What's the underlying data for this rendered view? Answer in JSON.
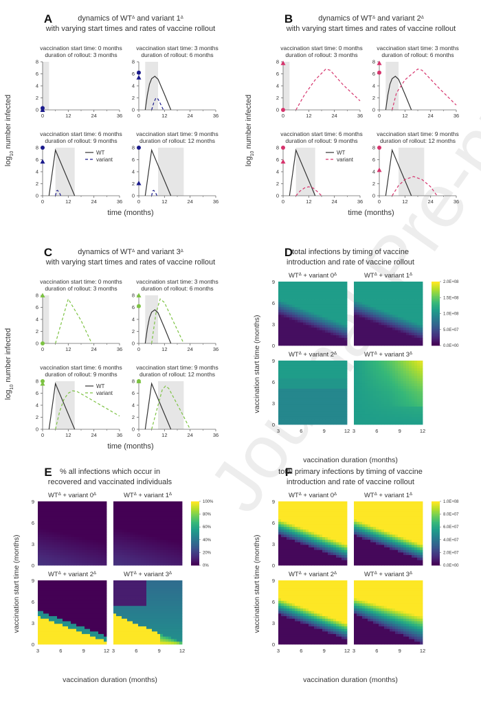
{
  "watermark": "Journal Pre-proof",
  "chart_data": [
    {
      "panel": "A",
      "type": "line",
      "title": [
        "dynamics of WTΔ and variant 1Δ",
        "with varying start times and rates of vaccine rollout"
      ],
      "xlabel": "time (months)",
      "ylabel": "log10 number infected",
      "xlim": [
        0,
        36
      ],
      "ylim": [
        0,
        8
      ],
      "xticks": [
        0,
        12,
        24,
        36
      ],
      "yticks": [
        0,
        2,
        4,
        6,
        8
      ],
      "color": "#1a1a8c",
      "legend": {
        "entries": [
          "WT",
          "variant"
        ],
        "placement": "subplot-3 top-right"
      },
      "subplots": [
        {
          "subtitle": [
            "vaccination start time: 0 months",
            "duration of rollout: 3 months"
          ],
          "vacc_start": 0,
          "vacc_end": 3,
          "wt": [],
          "variant": [],
          "marker_circle": 0.3,
          "marker_triangle": 0
        },
        {
          "subtitle": [
            "vaccination start time: 3 months",
            "duration of rollout: 6 months"
          ],
          "vacc_start": 3,
          "vacc_end": 9,
          "wt": [
            [
              3,
              0
            ],
            [
              4,
              2.5
            ],
            [
              5,
              4.3
            ],
            [
              6,
              5.2
            ],
            [
              7.5,
              5.6
            ],
            [
              9,
              5.1
            ],
            [
              12,
              2.6
            ],
            [
              15,
              0
            ]
          ],
          "variant": [
            [
              6,
              0
            ],
            [
              7,
              1.2
            ],
            [
              8,
              2
            ],
            [
              9,
              1.8
            ],
            [
              10,
              1.1
            ],
            [
              11.5,
              0
            ]
          ],
          "marker_circle": 6.2,
          "marker_triangle": 5.4
        },
        {
          "subtitle": [
            "vaccination start time: 6 months",
            "duration of rollout: 9 months"
          ],
          "vacc_start": 6,
          "vacc_end": 15,
          "wt": [
            [
              3,
              0
            ],
            [
              6,
              7.6
            ],
            [
              15,
              0
            ]
          ],
          "variant": [
            [
              6,
              0
            ],
            [
              6.5,
              0.8
            ],
            [
              7,
              0.9
            ],
            [
              8,
              0.4
            ],
            [
              8.5,
              0
            ]
          ],
          "marker_circle": 8,
          "marker_triangle": 5.7
        },
        {
          "subtitle": [
            "vaccination start time: 9 months",
            "duration of rollout: 12 months"
          ],
          "vacc_start": 9,
          "vacc_end": 21,
          "wt": [
            [
              3,
              0
            ],
            [
              6,
              7.6
            ],
            [
              15,
              0
            ]
          ],
          "variant": [
            [
              6,
              0
            ],
            [
              6.5,
              0.8
            ],
            [
              7,
              0.9
            ],
            [
              8,
              0.4
            ],
            [
              8.5,
              0
            ]
          ],
          "marker_circle": 8,
          "marker_triangle": 2.1
        }
      ]
    },
    {
      "panel": "B",
      "type": "line",
      "title": [
        "dynamics of WTΔ and variant 2Δ",
        "with varying start times and rates of vaccine rollout"
      ],
      "xlabel": "time (months)",
      "ylabel": "log10 number infected",
      "xlim": [
        0,
        36
      ],
      "ylim": [
        0,
        8
      ],
      "xticks": [
        0,
        12,
        24,
        36
      ],
      "yticks": [
        0,
        2,
        4,
        6,
        8
      ],
      "color": "#d6336c",
      "legend": {
        "entries": [
          "WT",
          "variant"
        ],
        "placement": "subplot-3 top-right"
      },
      "subplots": [
        {
          "subtitle": [
            "vaccination start time: 0 months",
            "duration of rollout: 3 months"
          ],
          "vacc_start": 0,
          "vacc_end": 3,
          "wt": [],
          "variant": [
            [
              6,
              0
            ],
            [
              10,
              2.5
            ],
            [
              15,
              5
            ],
            [
              20,
              6.8
            ],
            [
              22,
              6.6
            ],
            [
              28,
              4.2
            ],
            [
              36,
              1.5
            ]
          ],
          "marker_circle": 0,
          "marker_triangle": 7.8
        },
        {
          "subtitle": [
            "vaccination start time: 3 months",
            "duration of rollout: 6 months"
          ],
          "vacc_start": 3,
          "vacc_end": 9,
          "wt": [
            [
              3,
              0
            ],
            [
              4,
              2.5
            ],
            [
              5,
              4.3
            ],
            [
              6,
              5.2
            ],
            [
              7.5,
              5.6
            ],
            [
              9,
              5.1
            ],
            [
              12,
              2.6
            ],
            [
              15,
              0
            ]
          ],
          "variant": [
            [
              6,
              0
            ],
            [
              8,
              2.8
            ],
            [
              12,
              5
            ],
            [
              18,
              6.8
            ],
            [
              20,
              6.6
            ],
            [
              28,
              3.6
            ],
            [
              36,
              0.8
            ]
          ],
          "marker_circle": 6.2,
          "marker_triangle": 7.8
        },
        {
          "subtitle": [
            "vaccination start time: 6 months",
            "duration of rollout: 9 months"
          ],
          "vacc_start": 6,
          "vacc_end": 15,
          "wt": [
            [
              3,
              0
            ],
            [
              6,
              7.6
            ],
            [
              15,
              0
            ]
          ],
          "variant": [
            [
              6,
              0
            ],
            [
              8,
              0.8
            ],
            [
              10,
              1.3
            ],
            [
              12,
              1.5
            ],
            [
              14,
              1.3
            ],
            [
              16,
              0.7
            ],
            [
              18,
              0
            ]
          ],
          "marker_circle": 8,
          "marker_triangle": 5.7
        },
        {
          "subtitle": [
            "vaccination start time: 9 months",
            "duration of rollout: 12 months"
          ],
          "vacc_start": 9,
          "vacc_end": 21,
          "wt": [
            [
              3,
              0
            ],
            [
              6,
              7.6
            ],
            [
              15,
              0
            ]
          ],
          "variant": [
            [
              6,
              0
            ],
            [
              9,
              1.7
            ],
            [
              12,
              2.7
            ],
            [
              16,
              3.2
            ],
            [
              20,
              2.7
            ],
            [
              24,
              1.5
            ],
            [
              27,
              0
            ]
          ],
          "marker_circle": 8,
          "marker_triangle": 4.3
        }
      ]
    },
    {
      "panel": "C",
      "type": "line",
      "title": [
        "dynamics of WTΔ and variant 3Δ",
        "with varying start times and rates of vaccine rollout"
      ],
      "xlabel": "time (months)",
      "ylabel": "log10 number infected",
      "xlim": [
        0,
        36
      ],
      "ylim": [
        0,
        8
      ],
      "xticks": [
        0,
        12,
        24,
        36
      ],
      "yticks": [
        0,
        2,
        4,
        6,
        8
      ],
      "color": "#7cc242",
      "legend": {
        "entries": [
          "WT",
          "variant"
        ],
        "placement": "subplot-3 top-right"
      },
      "subplots": [
        {
          "subtitle": [
            "vaccination start time: 0 months",
            "duration of rollout: 3 months"
          ],
          "vacc_start": 0,
          "vacc_end": 3,
          "wt": [],
          "variant": [
            [
              6,
              0
            ],
            [
              12,
              7.4
            ],
            [
              18,
              3.8
            ],
            [
              23,
              0
            ]
          ],
          "marker_circle": 0,
          "marker_triangle": 8
        },
        {
          "subtitle": [
            "vaccination start time: 3 months",
            "duration of rollout: 6 months"
          ],
          "vacc_start": 3,
          "vacc_end": 9,
          "wt": [
            [
              3,
              0
            ],
            [
              4,
              2.5
            ],
            [
              5,
              4.3
            ],
            [
              6,
              5.2
            ],
            [
              7.5,
              5.6
            ],
            [
              9,
              5.1
            ],
            [
              12,
              2.6
            ],
            [
              15,
              0
            ]
          ],
          "variant": [
            [
              6,
              0
            ],
            [
              8,
              5
            ],
            [
              10,
              7.4
            ],
            [
              12,
              6.8
            ],
            [
              21,
              0
            ]
          ],
          "marker_circle": 6.2,
          "marker_triangle": 8
        },
        {
          "subtitle": [
            "vaccination start time: 6 months",
            "duration of rollout: 9 months"
          ],
          "vacc_start": 6,
          "vacc_end": 15,
          "wt": [
            [
              3,
              0
            ],
            [
              6,
              7.6
            ],
            [
              15,
              0
            ]
          ],
          "variant": [
            [
              6,
              0
            ],
            [
              8,
              3
            ],
            [
              10,
              5
            ],
            [
              12,
              6
            ],
            [
              14,
              6.4
            ],
            [
              16,
              6.3
            ],
            [
              20,
              5.5
            ],
            [
              36,
              2.2
            ]
          ],
          "marker_circle": 8,
          "marker_triangle": 7.6
        },
        {
          "subtitle": [
            "vaccination start time: 9 months",
            "duration of rollout: 12 months"
          ],
          "vacc_start": 9,
          "vacc_end": 21,
          "wt": [
            [
              3,
              0
            ],
            [
              6,
              7.6
            ],
            [
              15,
              0
            ]
          ],
          "variant": [
            [
              6,
              0
            ],
            [
              9,
              4
            ],
            [
              11,
              6.6
            ],
            [
              12.5,
              7.2
            ],
            [
              14,
              6.8
            ],
            [
              20,
              2.8
            ],
            [
              24,
              0
            ]
          ],
          "marker_circle": 8,
          "marker_triangle": 8
        }
      ]
    },
    {
      "panel": "D",
      "type": "heatmap",
      "title": [
        "total infections by timing of vaccine",
        "introduction and rate of vaccine rollout"
      ],
      "xlabel": "vaccination duration (months)",
      "ylabel": "vaccination start time (months)",
      "xlim": [
        3,
        12
      ],
      "ylim": [
        0,
        9
      ],
      "xticks": [
        3,
        6,
        9,
        12
      ],
      "yticks": [
        0,
        3,
        6,
        9
      ],
      "colorbar": {
        "min": 0,
        "max": 200000000,
        "ticks": [
          "0.0E+00",
          "5.0E+07",
          "1.0E+08",
          "1.5E+08",
          "2.0E+08"
        ],
        "colormap": "viridis"
      },
      "subplots": [
        {
          "subtitle": "WTΔ + variant 0Δ",
          "pattern": "ramp",
          "low": 0.0,
          "high": 0.55
        },
        {
          "subtitle": "WTΔ + variant 1Δ",
          "pattern": "ramp",
          "low": 0.0,
          "high": 0.55
        },
        {
          "subtitle": "WTΔ + variant 2Δ",
          "pattern": "flat",
          "low": 0.42,
          "high": 0.55
        },
        {
          "subtitle": "WTΔ + variant 3Δ",
          "pattern": "v3d",
          "low": 0.5,
          "high": 1.0
        }
      ]
    },
    {
      "panel": "E",
      "type": "heatmap",
      "title": [
        "% all infections which occur in",
        "recovered and vaccinated individuals"
      ],
      "xlabel": "vaccination duration (months)",
      "ylabel": "vaccination start time (months)",
      "xlim": [
        3,
        12
      ],
      "ylim": [
        0,
        9
      ],
      "xticks": [
        3,
        6,
        9,
        12
      ],
      "yticks": [
        0,
        3,
        6,
        9
      ],
      "colorbar": {
        "min": 0,
        "max": 100,
        "ticks": [
          "0%",
          "20%",
          "40%",
          "60%",
          "80%",
          "100%"
        ],
        "colormap": "viridis"
      },
      "subplots": [
        {
          "subtitle": "WTΔ + variant 0Δ",
          "pattern": "e01",
          "low": 0.0,
          "high": 0.15
        },
        {
          "subtitle": "WTΔ + variant 1Δ",
          "pattern": "e01",
          "low": 0.0,
          "high": 0.15
        },
        {
          "subtitle": "WTΔ + variant 2Δ",
          "pattern": "e2",
          "low": 0.0,
          "high": 1.0
        },
        {
          "subtitle": "WTΔ + variant 3Δ",
          "pattern": "e3",
          "low": 0.05,
          "high": 1.0
        }
      ]
    },
    {
      "panel": "F",
      "type": "heatmap",
      "title": [
        "total primary infections by timing of vaccine",
        "introduction and rate of vaccine rollout"
      ],
      "xlabel": "vaccination duration (months)",
      "ylabel": "vaccination start time (months)",
      "xlim": [
        3,
        12
      ],
      "ylim": [
        0,
        9
      ],
      "xticks": [
        3,
        6,
        9,
        12
      ],
      "yticks": [
        0,
        3,
        6,
        9
      ],
      "colorbar": {
        "min": 0,
        "max": 100000000,
        "ticks": [
          "0.0E+00",
          "2.0E+07",
          "4.0E+07",
          "6.0E+07",
          "8.0E+07",
          "1.0E+08"
        ],
        "colormap": "viridis"
      },
      "subplots": [
        {
          "subtitle": "WTΔ + variant 0Δ",
          "pattern": "framp",
          "low": 0.0,
          "high": 1.0
        },
        {
          "subtitle": "WTΔ + variant 1Δ",
          "pattern": "framp",
          "low": 0.0,
          "high": 1.0
        },
        {
          "subtitle": "WTΔ + variant 2Δ",
          "pattern": "framp",
          "low": 0.0,
          "high": 1.0
        },
        {
          "subtitle": "WTΔ + variant 3Δ",
          "pattern": "framp3",
          "low": 0.0,
          "high": 1.0
        }
      ]
    }
  ]
}
